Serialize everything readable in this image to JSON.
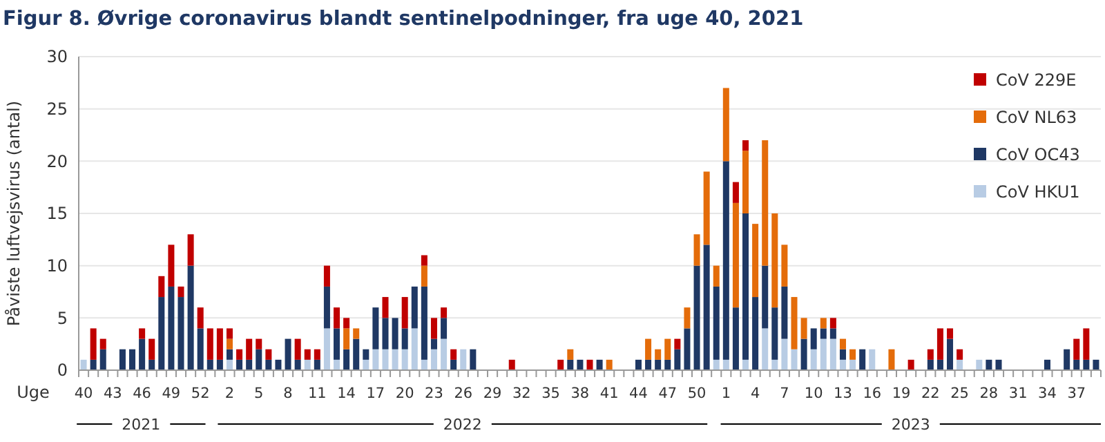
{
  "chart_data": {
    "type": "bar",
    "stacked": true,
    "title": "Figur 8. Øvrige coronavirus blandt sentinelpodninger, fra uge 40, 2021",
    "xlabel": "Uge",
    "ylabel": "Påviste luftvejsvirus (antal)",
    "categories": [
      "40",
      null,
      null,
      "43",
      null,
      null,
      "46",
      null,
      null,
      "49",
      null,
      null,
      "52",
      null,
      null,
      "2",
      null,
      null,
      "5",
      null,
      null,
      "8",
      null,
      null,
      "11",
      null,
      null,
      "14",
      null,
      null,
      "17",
      null,
      null,
      "20",
      null,
      null,
      "23",
      null,
      null,
      "26",
      null,
      null,
      "29",
      null,
      null,
      "32",
      null,
      null,
      "35",
      null,
      null,
      "38",
      null,
      null,
      "41",
      null,
      null,
      "44",
      null,
      null,
      "47",
      null,
      null,
      "50",
      null,
      null,
      "1",
      null,
      null,
      "4",
      null,
      null,
      "7",
      null,
      null,
      "10",
      null,
      null,
      "13",
      null,
      null,
      "16",
      null,
      null,
      "19",
      null,
      null,
      "22",
      null,
      null,
      "25",
      null,
      null,
      "28",
      null,
      null,
      "31",
      null,
      null,
      "34",
      null,
      null,
      "37",
      null,
      null
    ],
    "series": [
      {
        "name": "CoV HKU1",
        "color": "#b8cce4",
        "values": [
          1,
          0,
          0,
          0,
          0,
          0,
          0,
          0,
          0,
          0,
          0,
          0,
          0,
          0,
          0,
          1,
          0,
          0,
          0,
          0,
          0,
          0,
          0,
          1,
          0,
          4,
          1,
          0,
          0,
          1,
          2,
          2,
          2,
          2,
          4,
          1,
          2,
          3,
          0,
          2,
          0,
          0,
          0,
          0,
          0,
          0,
          0,
          0,
          0,
          0,
          0,
          0,
          0,
          0,
          0,
          0,
          0,
          0,
          0,
          0,
          0,
          0,
          0,
          0,
          0,
          1,
          1,
          0,
          1,
          0,
          4,
          1,
          3,
          2,
          0,
          2,
          3,
          3,
          1,
          1,
          0,
          2,
          0,
          0,
          0,
          0,
          0,
          0,
          0,
          0,
          1,
          0,
          1,
          0,
          0,
          0,
          0,
          0,
          0,
          0,
          0,
          0,
          0,
          0,
          0
        ]
      },
      {
        "name": "CoV OC43",
        "color": "#1f3864",
        "values": [
          0,
          1,
          2,
          0,
          2,
          2,
          3,
          1,
          7,
          8,
          7,
          10,
          4,
          1,
          1,
          1,
          1,
          1,
          2,
          1,
          1,
          3,
          1,
          0,
          1,
          4,
          3,
          2,
          3,
          1,
          4,
          3,
          3,
          2,
          4,
          7,
          1,
          2,
          1,
          0,
          2,
          0,
          0,
          0,
          0,
          0,
          0,
          0,
          0,
          0,
          1,
          1,
          0,
          1,
          0,
          0,
          0,
          1,
          1,
          1,
          1,
          2,
          4,
          10,
          12,
          7,
          19,
          6,
          14,
          7,
          6,
          5,
          5,
          0,
          3,
          2,
          1,
          1,
          1,
          0,
          2,
          0,
          0,
          0,
          0,
          0,
          0,
          1,
          1,
          3,
          0,
          0,
          0,
          1,
          1,
          0,
          0,
          0,
          0,
          1,
          0,
          2,
          1,
          1,
          1
        ]
      },
      {
        "name": "CoV NL63",
        "color": "#e46c0a",
        "values": [
          0,
          0,
          0,
          0,
          0,
          0,
          0,
          0,
          0,
          0,
          0,
          0,
          0,
          0,
          0,
          1,
          0,
          0,
          0,
          0,
          0,
          0,
          0,
          0,
          0,
          0,
          0,
          2,
          1,
          0,
          0,
          0,
          0,
          0,
          0,
          2,
          0,
          0,
          0,
          0,
          0,
          0,
          0,
          0,
          0,
          0,
          0,
          0,
          0,
          0,
          1,
          0,
          0,
          0,
          1,
          0,
          0,
          0,
          2,
          1,
          2,
          0,
          2,
          3,
          7,
          2,
          7,
          10,
          6,
          7,
          12,
          9,
          4,
          5,
          2,
          0,
          1,
          0,
          1,
          1,
          0,
          0,
          0,
          2,
          0,
          0,
          0,
          0,
          0,
          0,
          0,
          0,
          0,
          0,
          0,
          0,
          0,
          0,
          0,
          0,
          0,
          0,
          0,
          0,
          0
        ]
      },
      {
        "name": "CoV 229E",
        "color": "#c00000",
        "values": [
          0,
          3,
          1,
          0,
          0,
          0,
          1,
          2,
          2,
          4,
          1,
          3,
          2,
          3,
          3,
          1,
          1,
          2,
          1,
          1,
          0,
          0,
          2,
          1,
          1,
          2,
          2,
          1,
          0,
          0,
          0,
          2,
          0,
          3,
          0,
          1,
          2,
          1,
          1,
          0,
          0,
          0,
          0,
          0,
          1,
          0,
          0,
          0,
          0,
          1,
          0,
          0,
          1,
          0,
          0,
          0,
          0,
          0,
          0,
          0,
          0,
          1,
          0,
          0,
          0,
          0,
          0,
          2,
          1,
          0,
          0,
          0,
          0,
          0,
          0,
          0,
          0,
          1,
          0,
          0,
          0,
          0,
          0,
          0,
          0,
          1,
          0,
          1,
          3,
          1,
          1,
          0,
          0,
          0,
          0,
          0,
          0,
          0,
          0,
          0,
          0,
          0,
          2,
          3,
          0
        ]
      }
    ],
    "ylim": [
      0,
      30
    ],
    "yticks": [
      0,
      5,
      10,
      15,
      20,
      25,
      30
    ],
    "grid": "y",
    "legend": "top right",
    "annotations": [
      "2021",
      "2022",
      "2023"
    ]
  }
}
